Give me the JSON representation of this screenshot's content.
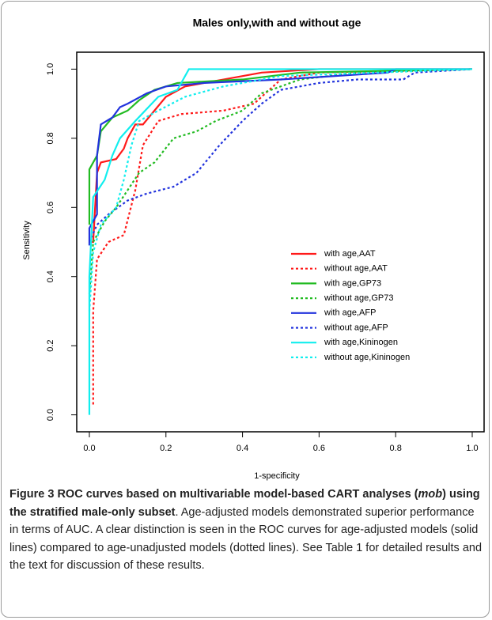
{
  "chart_data": {
    "type": "line",
    "title": "Males only,with and without age",
    "x_label": "1-specificity",
    "y_label": "Sensitivity",
    "xlim": [
      -0.033,
      1.031
    ],
    "ylim": [
      -0.049,
      1.049
    ],
    "xticks": [
      {
        "value": 0,
        "label": "0.0"
      },
      0.2,
      0.4,
      0.6,
      0.8,
      {
        "value": 1,
        "label": "1.0"
      }
    ],
    "yticks": [
      {
        "value": 0,
        "label": "0.0"
      },
      0.2,
      0.4,
      0.6,
      0.8,
      {
        "value": 1,
        "label": "1.0"
      }
    ],
    "legend": "center-right",
    "series": [
      {
        "name": "with age,AAT",
        "color": "#ff1a1a",
        "line_style": "solid",
        "x": [
          0,
          0.01,
          0.02,
          0.03,
          0.07,
          0.09,
          0.1,
          0.12,
          0.14,
          0.17,
          0.2,
          0.25,
          0.35,
          0.45,
          0.6,
          1
        ],
        "y": [
          0.5,
          0.5,
          0.7,
          0.73,
          0.74,
          0.77,
          0.8,
          0.84,
          0.84,
          0.88,
          0.92,
          0.95,
          0.97,
          0.99,
          1,
          1
        ]
      },
      {
        "name": "without age,AAT",
        "color": "#ff1a1a",
        "line_style": "dotted",
        "x": [
          0.01,
          0.01,
          0.02,
          0.05,
          0.09,
          0.12,
          0.14,
          0.18,
          0.24,
          0.35,
          0.43,
          0.5,
          0.6,
          1
        ],
        "y": [
          0.03,
          0.3,
          0.45,
          0.5,
          0.52,
          0.65,
          0.78,
          0.85,
          0.87,
          0.88,
          0.9,
          0.97,
          0.99,
          1
        ]
      },
      {
        "name": "with age,GP73",
        "color": "#22bb22",
        "line_style": "solid",
        "x": [
          0,
          0,
          0.02,
          0.03,
          0.06,
          0.1,
          0.13,
          0.17,
          0.23,
          0.4,
          0.55,
          1
        ],
        "y": [
          0.55,
          0.71,
          0.75,
          0.82,
          0.86,
          0.88,
          0.91,
          0.94,
          0.96,
          0.97,
          0.99,
          1
        ]
      },
      {
        "name": "without age,GP73",
        "color": "#22bb22",
        "line_style": "dotted",
        "x": [
          0,
          0.01,
          0.04,
          0.07,
          0.1,
          0.13,
          0.17,
          0.22,
          0.28,
          0.33,
          0.4,
          0.45,
          0.55,
          0.7,
          1
        ],
        "y": [
          0.35,
          0.5,
          0.56,
          0.6,
          0.65,
          0.7,
          0.73,
          0.8,
          0.82,
          0.85,
          0.88,
          0.93,
          0.97,
          0.99,
          1
        ]
      },
      {
        "name": "with age,AFP",
        "color": "#2233dd",
        "line_style": "solid",
        "x": [
          0,
          0,
          0.02,
          0.02,
          0.03,
          0.06,
          0.08,
          0.1,
          0.15,
          0.2,
          0.3,
          0.5,
          0.78,
          0.8,
          1
        ],
        "y": [
          0.49,
          0.54,
          0.58,
          0.75,
          0.84,
          0.86,
          0.89,
          0.9,
          0.93,
          0.95,
          0.96,
          0.97,
          0.99,
          1,
          1
        ]
      },
      {
        "name": "without age,AFP",
        "color": "#2233dd",
        "line_style": "dotted",
        "x": [
          0,
          0.02,
          0.05,
          0.1,
          0.15,
          0.22,
          0.28,
          0.34,
          0.4,
          0.45,
          0.5,
          0.6,
          0.7,
          0.82,
          0.85,
          1
        ],
        "y": [
          0.5,
          0.55,
          0.58,
          0.62,
          0.64,
          0.66,
          0.7,
          0.78,
          0.85,
          0.9,
          0.94,
          0.96,
          0.97,
          0.97,
          0.99,
          1
        ]
      },
      {
        "name": "with age,Kininogen",
        "color": "#11eeee",
        "line_style": "solid",
        "x": [
          0,
          0,
          0.01,
          0.04,
          0.06,
          0.08,
          0.12,
          0.18,
          0.23,
          0.26,
          1
        ],
        "y": [
          0,
          0.4,
          0.63,
          0.68,
          0.75,
          0.8,
          0.85,
          0.92,
          0.94,
          1,
          1
        ]
      },
      {
        "name": "without age,Kininogen",
        "color": "#11eeee",
        "line_style": "dotted",
        "x": [
          0,
          0.01,
          0.03,
          0.07,
          0.09,
          0.11,
          0.13,
          0.18,
          0.25,
          0.35,
          0.5,
          1
        ],
        "y": [
          0.3,
          0.47,
          0.55,
          0.6,
          0.68,
          0.78,
          0.85,
          0.88,
          0.92,
          0.95,
          0.98,
          1
        ]
      }
    ]
  },
  "caption": {
    "label": "Figure 3",
    "title_start": "ROC curves based on multivariable model-based CART analyses (",
    "title_italic": "mob",
    "title_end": ") using the stratified male-only subset",
    "text": ". Age-adjusted models demonstrated superior performance in terms of AUC. A clear distinction is seen in the ROC curves for age-adjusted models (solid lines) compared to age-unadjusted models (dotted lines). See Table 1 for detailed results and the text for discussion of these results."
  }
}
